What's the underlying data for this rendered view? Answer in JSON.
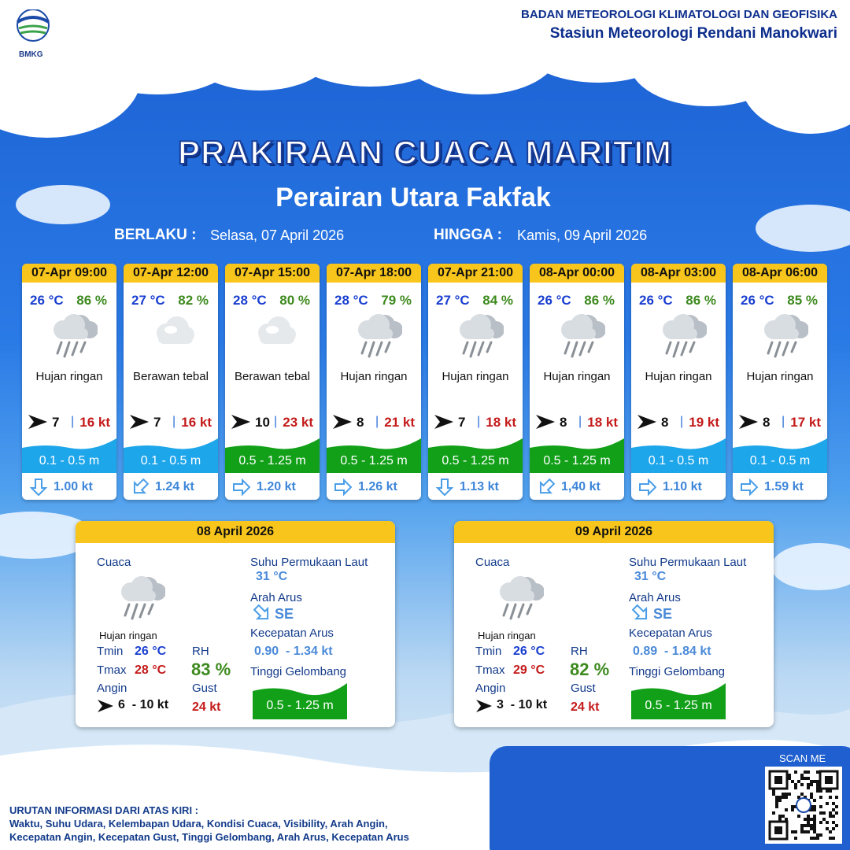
{
  "header": {
    "logo": "BMKG",
    "org": "BADAN METEOROLOGI KLIMATOLOGI DAN GEOFISIKA",
    "station": "Stasiun Meteorologi Rendani Manokwari"
  },
  "title": "PRAKIRAAN CUACA MARITIM",
  "subtitle": "Perairan Utara Fakfak",
  "validity": {
    "from_label": "BERLAKU :",
    "from": "Selasa, 07 April 2026",
    "to_label": "HINGGA :",
    "to": "Kamis, 09 April 2026"
  },
  "forecasts": [
    {
      "time": "07-Apr 09:00",
      "temp": "26 °C",
      "rh": "86 %",
      "icon": "rain",
      "weather": "Hujan ringan",
      "wind": "7",
      "gust": "16 kt",
      "wave": "0.1 - 0.5 m",
      "wave_color": "#1ea6ea",
      "current_direction": "S",
      "current": "1.00 kt"
    },
    {
      "time": "07-Apr 12:00",
      "temp": "27 °C",
      "rh": "82 %",
      "icon": "cloud",
      "weather": "Berawan tebal",
      "wind": "7",
      "gust": "16 kt",
      "wave": "0.1 - 0.5 m",
      "wave_color": "#1ea6ea",
      "current_direction": "SW",
      "current": "1.24 kt"
    },
    {
      "time": "07-Apr 15:00",
      "temp": "28 °C",
      "rh": "80 %",
      "icon": "cloud",
      "weather": "Berawan tebal",
      "wind": "10",
      "gust": "23 kt",
      "wave": "0.5 - 1.25 m",
      "wave_color": "#13a019",
      "current_direction": "E",
      "current": "1.20 kt"
    },
    {
      "time": "07-Apr 18:00",
      "temp": "28 °C",
      "rh": "79 %",
      "icon": "rain",
      "weather": "Hujan ringan",
      "wind": "8",
      "gust": "21 kt",
      "wave": "0.5 - 1.25 m",
      "wave_color": "#13a019",
      "current_direction": "E",
      "current": "1.26 kt"
    },
    {
      "time": "07-Apr 21:00",
      "temp": "27 °C",
      "rh": "84 %",
      "icon": "rain",
      "weather": "Hujan ringan",
      "wind": "7",
      "gust": "18 kt",
      "wave": "0.5 - 1.25 m",
      "wave_color": "#13a019",
      "current_direction": "S",
      "current": "1.13 kt"
    },
    {
      "time": "08-Apr 00:00",
      "temp": "26 °C",
      "rh": "86 %",
      "icon": "rain",
      "weather": "Hujan ringan",
      "wind": "8",
      "gust": "18 kt",
      "wave": "0.5 - 1.25 m",
      "wave_color": "#13a019",
      "current_direction": "SW",
      "current": "1,40 kt"
    },
    {
      "time": "08-Apr 03:00",
      "temp": "26 °C",
      "rh": "86 %",
      "icon": "rain",
      "weather": "Hujan ringan",
      "wind": "8",
      "gust": "19 kt",
      "wave": "0.1 - 0.5 m",
      "wave_color": "#1ea6ea",
      "current_direction": "E",
      "current": "1.10 kt"
    },
    {
      "time": "08-Apr 06:00",
      "temp": "26 °C",
      "rh": "85 %",
      "icon": "rain",
      "weather": "Hujan ringan",
      "wind": "8",
      "gust": "17 kt",
      "wave": "0.1 - 0.5 m",
      "wave_color": "#1ea6ea",
      "current_direction": "E",
      "current": "1.59 kt"
    }
  ],
  "daily": [
    {
      "date": "08 April 2026",
      "weather_label": "Cuaca",
      "weather": "Hujan ringan",
      "tmin_label": "Tmin",
      "tmin": "26 °C",
      "tmax_label": "Tmax",
      "tmax": "28 °C",
      "rh_label": "RH",
      "rh": "83 %",
      "wind_label": "Angin",
      "wind": "6  - 10 kt",
      "gust_label": "Gust",
      "gust": "24 kt",
      "sst_label": "Suhu Permukaan Laut",
      "sst": "31 °C",
      "current_dir_label": "Arah Arus",
      "current_dir": "SE",
      "current_speed_label": "Kecepatan Arus",
      "current_speed": "0.90  - 1.34 kt",
      "wave_label": "Tinggi Gelombang",
      "wave": "0.5 - 1.25 m"
    },
    {
      "date": "09 April 2026",
      "weather_label": "Cuaca",
      "weather": "Hujan ringan",
      "tmin_label": "Tmin",
      "tmin": "26 °C",
      "tmax_label": "Tmax",
      "tmax": "29 °C",
      "rh_label": "RH",
      "rh": "82 %",
      "wind_label": "Angin",
      "wind": "3  - 10 kt",
      "gust_label": "Gust",
      "gust": "24 kt",
      "sst_label": "Suhu Permukaan Laut",
      "sst": "31 °C",
      "current_dir_label": "Arah Arus",
      "current_dir": "SE",
      "current_speed_label": "Kecepatan Arus",
      "current_speed": "0.89  - 1.84 kt",
      "wave_label": "Tinggi Gelombang",
      "wave": "0.5 - 1.25 m"
    }
  ],
  "footer": {
    "qr_label": "SCAN ME",
    "note_title": "URUTAN INFORMASI DARI ATAS KIRI :",
    "note_lines": [
      "Waktu, Suhu Udara, Kelembapan Udara, Kondisi Cuaca, Visibility, Arah Angin,",
      "Kecepatan Angin, Kecepatan Gust, Tinggi Gelombang, Arah Arus, Kecepatan Arus"
    ]
  }
}
